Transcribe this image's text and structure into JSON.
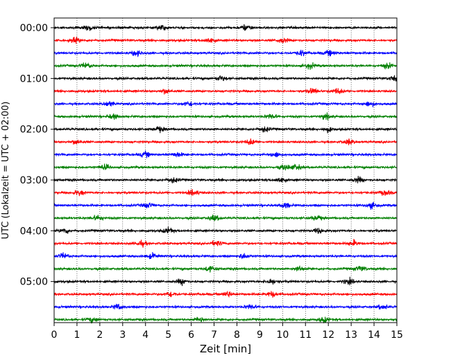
{
  "chart_data": {
    "type": "line",
    "title": "",
    "xlabel": "Zeit  [min]",
    "ylabel": "UTC (Lokalzeit = UTC + 02:00)",
    "xlim": [
      0,
      15
    ],
    "x_ticks": [
      0,
      1,
      2,
      3,
      4,
      5,
      6,
      7,
      8,
      9,
      10,
      11,
      12,
      13,
      14,
      15
    ],
    "x_grid": true,
    "ylim_hours": [
      0,
      6
    ],
    "y_ticks": [
      "00:00",
      "01:00",
      "02:00",
      "03:00",
      "04:00",
      "05:00"
    ],
    "trace_interval_minutes": 15,
    "trace_color_cycle": [
      "#000000",
      "#ff0000",
      "#0000ff",
      "#008000"
    ],
    "series": [
      {
        "start": "00:00",
        "color": "#000000",
        "events_min": [
          1.5,
          4.7,
          8.4
        ]
      },
      {
        "start": "00:15",
        "color": "#ff0000",
        "events_min": [
          0.9,
          6.8,
          10.0
        ]
      },
      {
        "start": "00:30",
        "color": "#0000ff",
        "events_min": [
          3.6,
          10.8,
          12.1
        ]
      },
      {
        "start": "00:45",
        "color": "#008000",
        "events_min": [
          1.4,
          11.2,
          14.6
        ]
      },
      {
        "start": "01:00",
        "color": "#000000",
        "events_min": [
          7.3,
          14.9
        ]
      },
      {
        "start": "01:15",
        "color": "#ff0000",
        "events_min": [
          4.9,
          11.3,
          12.4
        ]
      },
      {
        "start": "01:30",
        "color": "#0000ff",
        "events_min": [
          5.9,
          2.4,
          13.8
        ]
      },
      {
        "start": "01:45",
        "color": "#008000",
        "events_min": [
          2.6,
          9.5,
          11.9
        ]
      },
      {
        "start": "02:00",
        "color": "#000000",
        "events_min": [
          4.6,
          9.2,
          12.0
        ]
      },
      {
        "start": "02:15",
        "color": "#ff0000",
        "events_min": [
          1.0,
          8.6,
          12.9
        ]
      },
      {
        "start": "02:30",
        "color": "#0000ff",
        "events_min": [
          4.0,
          5.4,
          9.7
        ]
      },
      {
        "start": "02:45",
        "color": "#008000",
        "events_min": [
          2.2,
          10.1,
          10.6
        ]
      },
      {
        "start": "03:00",
        "color": "#000000",
        "events_min": [
          5.2,
          9.9,
          13.3
        ]
      },
      {
        "start": "03:15",
        "color": "#ff0000",
        "events_min": [
          1.1,
          6.1,
          14.5
        ]
      },
      {
        "start": "03:30",
        "color": "#0000ff",
        "events_min": [
          4.1,
          10.1,
          13.9
        ]
      },
      {
        "start": "03:45",
        "color": "#008000",
        "events_min": [
          1.9,
          7.0,
          11.5
        ]
      },
      {
        "start": "04:00",
        "color": "#000000",
        "events_min": [
          0.5,
          5.0,
          11.6
        ]
      },
      {
        "start": "04:15",
        "color": "#ff0000",
        "events_min": [
          3.8,
          7.1,
          13.1
        ]
      },
      {
        "start": "04:30",
        "color": "#0000ff",
        "events_min": [
          0.4,
          4.3,
          8.3
        ]
      },
      {
        "start": "04:45",
        "color": "#008000",
        "events_min": [
          6.8,
          10.7,
          13.4
        ]
      },
      {
        "start": "05:00",
        "color": "#000000",
        "events_min": [
          5.6,
          9.5,
          12.9
        ]
      },
      {
        "start": "05:15",
        "color": "#ff0000",
        "events_min": [
          5.1,
          7.6,
          9.5
        ]
      },
      {
        "start": "05:30",
        "color": "#0000ff",
        "events_min": [
          2.8,
          8.6,
          14.4
        ]
      },
      {
        "start": "05:45",
        "color": "#008000",
        "events_min": [
          1.7,
          6.4,
          11.8
        ]
      }
    ]
  }
}
